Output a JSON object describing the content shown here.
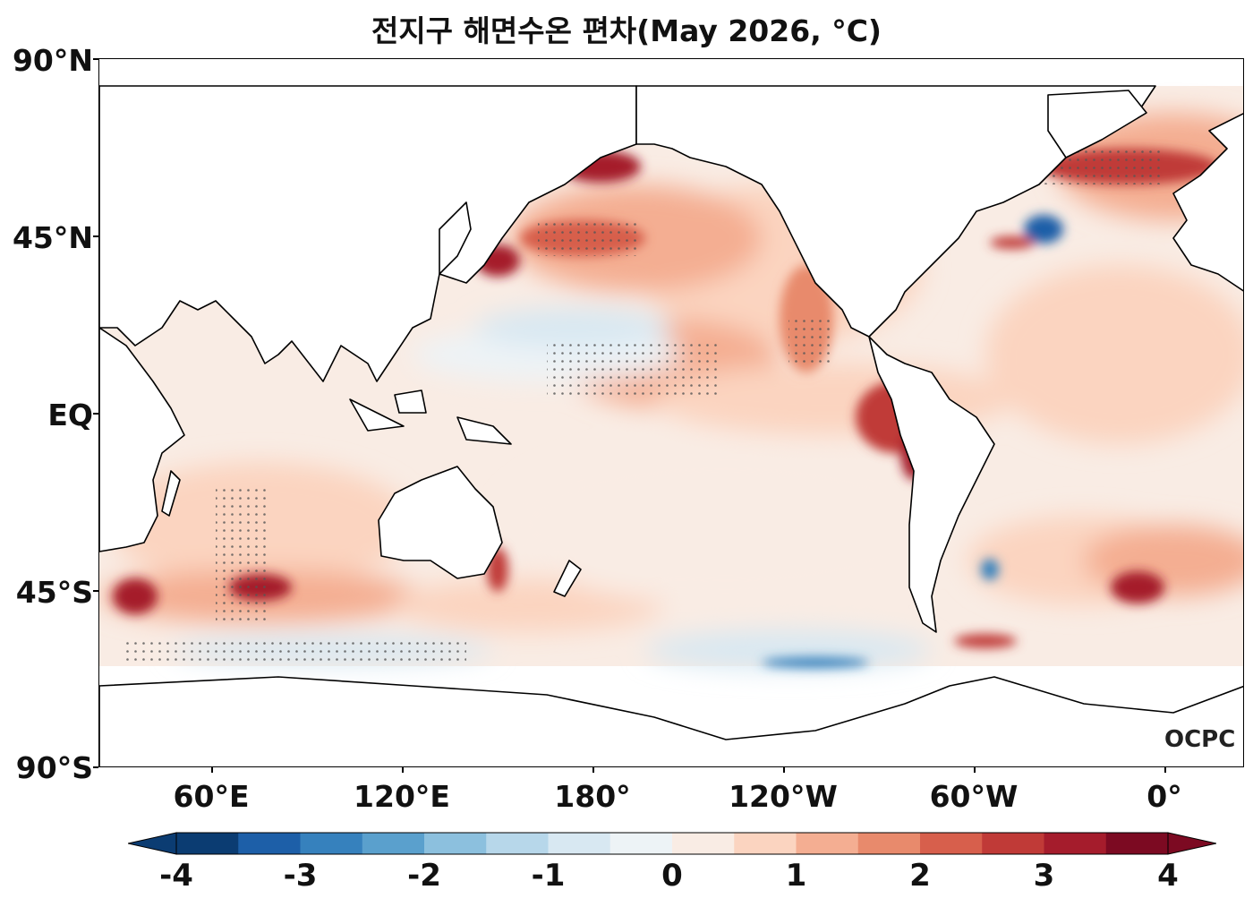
{
  "title": "전지구 해면수온 편차(May 2026, °C)",
  "lat_labels": [
    "90°N",
    "45°N",
    "EQ",
    "45°S",
    "90°S"
  ],
  "lon_labels": [
    "60°E",
    "120°E",
    "180°",
    "120°W",
    "60°W",
    "0°"
  ],
  "colorbar": {
    "tick_labels": [
      "-4",
      "-3",
      "-2",
      "-1",
      "0",
      "1",
      "2",
      "3",
      "4"
    ],
    "levels": [
      -4,
      -3.5,
      -3,
      -2.5,
      -2,
      -1.5,
      -1,
      -0.5,
      0,
      0.5,
      1,
      1.5,
      2,
      2.5,
      3,
      3.5,
      4
    ],
    "colors": [
      "#0b3c72",
      "#1d5fa8",
      "#3681bd",
      "#5aa0cd",
      "#8cc0de",
      "#b7d7ea",
      "#d8e8f2",
      "#edf3f6",
      "#f9ece4",
      "#fbd4c0",
      "#f4ae92",
      "#e88a6c",
      "#d75f4c",
      "#c03a37",
      "#a51c2c",
      "#7c0a22"
    ]
  },
  "logo_text": "OCPC",
  "map_data": {
    "variable": "sea surface temperature anomaly",
    "units": "°C",
    "projection": "PlateCarree, centered near 150°E",
    "stippling": "significant anomalies marked with dots"
  }
}
